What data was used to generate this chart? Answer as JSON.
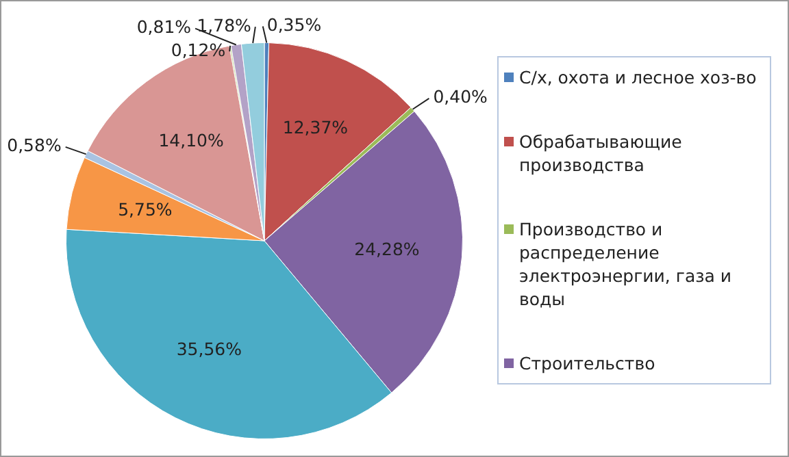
{
  "chart_data": {
    "type": "pie",
    "categories": [
      "С/х, охота и лесное хоз-во",
      "Обрабатывающие производства",
      "Производство и распределение электроэнергии, газа и воды",
      "Строительство",
      null,
      null,
      null,
      null,
      null,
      null,
      null
    ],
    "values": [
      0.35,
      12.37,
      0.4,
      24.28,
      35.56,
      5.75,
      0.58,
      14.1,
      0.12,
      0.81,
      1.78
    ],
    "value_labels": [
      "0,35%",
      "12,37%",
      "0,40%",
      "24,28%",
      "35,56%",
      "5,75%",
      "0,58%",
      "14,10%",
      "0,12%",
      "0,81%",
      "1,78%"
    ],
    "colors": [
      "#4f81bd",
      "#c0504d",
      "#9bbb59",
      "#8064a2",
      "#4bacc6",
      "#f79646",
      "#a9c3e2",
      "#d99694",
      "#c3d69b",
      "#b3a2c7",
      "#93cddd"
    ],
    "legend": "right"
  }
}
